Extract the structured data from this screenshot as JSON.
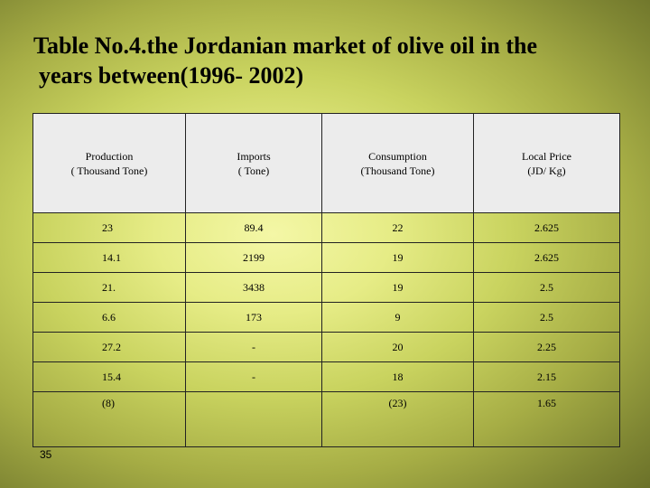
{
  "title": {
    "line1": "Table No.4.the Jordanian market of olive oil in the",
    "line2": "years between(1996- 2002)"
  },
  "table": {
    "headers": [
      [
        "Production",
        "( Thousand Tone)"
      ],
      [
        "Imports",
        "( Tone)"
      ],
      [
        "Consumption",
        "(Thousand Tone)"
      ],
      [
        "Local Price",
        "(JD/ Kg)"
      ]
    ],
    "rows": [
      [
        "23",
        "89.4",
        "22",
        "2.625"
      ],
      [
        "14.1",
        "2199",
        "19",
        "2.625"
      ],
      [
        "21.",
        "3438",
        "19",
        "2.5"
      ],
      [
        "6.6",
        "173",
        "9",
        "2.5"
      ],
      [
        "27.2",
        "-",
        "20",
        "2.25"
      ],
      [
        "15.4",
        "-",
        "18",
        "2.15"
      ],
      [
        "(8)",
        "",
        "(23)",
        "1.65"
      ]
    ]
  },
  "slide_number": "35"
}
